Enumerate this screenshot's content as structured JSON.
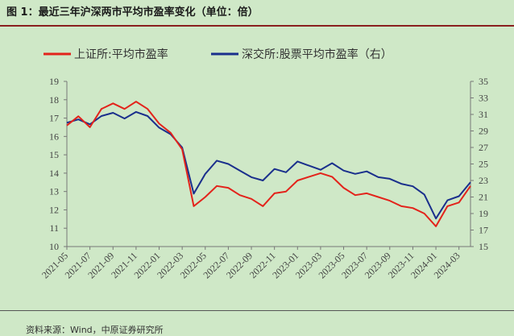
{
  "header": {
    "title": "图 1：最近三年沪深两市平均市盈率变化（单位：倍）"
  },
  "footer": {
    "source": "资料来源：Wind，中原证券研究所"
  },
  "colors": {
    "series_sh": "#e3231b",
    "series_sz": "#1a2f8c",
    "background": "#cfe8c7",
    "title_rule": "#8a1f1f"
  },
  "chart_data": {
    "type": "line",
    "legend_position": "top",
    "grid": false,
    "y_left": {
      "range": [
        10,
        19
      ],
      "ticks": [
        "10",
        "11",
        "12",
        "13",
        "14",
        "15",
        "16",
        "17",
        "18",
        "19"
      ]
    },
    "y_right": {
      "range": [
        15,
        35
      ],
      "ticks": [
        "15",
        "17",
        "19",
        "21",
        "23",
        "25",
        "27",
        "29",
        "31",
        "33",
        "35"
      ]
    },
    "x_range": [
      "2021-05",
      "2024-04"
    ],
    "x_ticks": [
      "2021-05",
      "2021-07",
      "2021-09",
      "2021-11",
      "2022-01",
      "2022-03",
      "2022-05",
      "2022-07",
      "2022-09",
      "2022-11",
      "2023-01",
      "2023-03",
      "2023-05",
      "2023-07",
      "2023-09",
      "2023-11",
      "2024-01",
      "2024-03"
    ],
    "series": [
      {
        "name": "上证所:平均市盈率",
        "axis": "left",
        "x": [
          "2021-05",
          "2021-06",
          "2021-07",
          "2021-08",
          "2021-09",
          "2021-10",
          "2021-11",
          "2021-12",
          "2022-01",
          "2022-02",
          "2022-03",
          "2022-04",
          "2022-05",
          "2022-06",
          "2022-07",
          "2022-08",
          "2022-09",
          "2022-10",
          "2022-11",
          "2022-12",
          "2023-01",
          "2023-02",
          "2023-03",
          "2023-04",
          "2023-05",
          "2023-06",
          "2023-07",
          "2023-08",
          "2023-09",
          "2023-10",
          "2023-11",
          "2023-12",
          "2024-01",
          "2024-02",
          "2024-03",
          "2024-04"
        ],
        "values": [
          16.6,
          17.1,
          16.5,
          17.5,
          17.8,
          17.5,
          17.9,
          17.5,
          16.7,
          16.2,
          15.3,
          12.2,
          12.7,
          13.3,
          13.2,
          12.8,
          12.6,
          12.2,
          12.9,
          13.0,
          13.6,
          13.8,
          14.0,
          13.8,
          13.2,
          12.8,
          12.9,
          12.7,
          12.5,
          12.2,
          12.1,
          11.8,
          11.1,
          12.2,
          12.4,
          13.3
        ]
      },
      {
        "name": "深交所:股票平均市盈率（右）",
        "axis": "right",
        "x": [
          "2021-05",
          "2021-06",
          "2021-07",
          "2021-08",
          "2021-09",
          "2021-10",
          "2021-11",
          "2021-12",
          "2022-01",
          "2022-02",
          "2022-03",
          "2022-04",
          "2022-05",
          "2022-06",
          "2022-07",
          "2022-08",
          "2022-09",
          "2022-10",
          "2022-11",
          "2022-12",
          "2023-01",
          "2023-02",
          "2023-03",
          "2023-04",
          "2023-05",
          "2023-06",
          "2023-07",
          "2023-08",
          "2023-09",
          "2023-10",
          "2023-11",
          "2023-12",
          "2024-01",
          "2024-02",
          "2024-03",
          "2024-04"
        ],
        "values": [
          30.0,
          30.4,
          29.8,
          30.8,
          31.2,
          30.5,
          31.3,
          30.8,
          29.4,
          28.6,
          27.0,
          21.4,
          23.8,
          25.4,
          25.0,
          24.2,
          23.4,
          23.0,
          24.4,
          24.0,
          25.3,
          24.8,
          24.3,
          25.1,
          24.2,
          23.8,
          24.1,
          23.4,
          23.2,
          22.6,
          22.3,
          21.3,
          18.4,
          20.6,
          21.1,
          22.8
        ]
      }
    ]
  }
}
